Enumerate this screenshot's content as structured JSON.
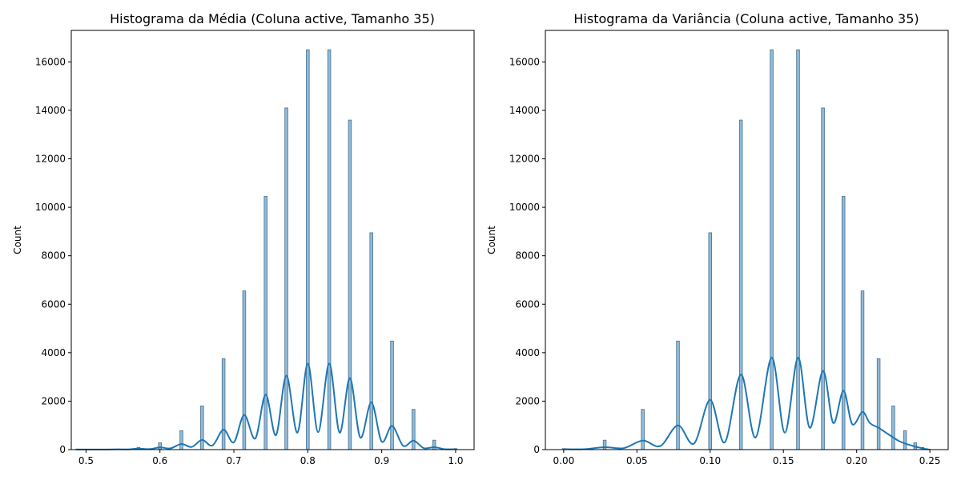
{
  "chart_data": [
    {
      "type": "bar",
      "title": "Histograma da Média (Coluna active, Tamanho 35)",
      "xlabel": "",
      "ylabel": "Count",
      "xlim": [
        0.48,
        1.025
      ],
      "ylim": [
        0,
        17300
      ],
      "xticks": [
        0.5,
        0.6,
        0.7,
        0.8,
        0.9,
        1.0
      ],
      "xtick_labels": [
        "0.5",
        "0.6",
        "0.7",
        "0.8",
        "0.9",
        "1.0"
      ],
      "yticks": [
        0,
        2000,
        4000,
        6000,
        8000,
        10000,
        12000,
        14000,
        16000
      ],
      "ytick_labels": [
        "0",
        "2000",
        "4000",
        "6000",
        "8000",
        "10000",
        "12000",
        "14000",
        "16000"
      ],
      "bar_width": 0.004,
      "x": [
        0.486,
        0.514,
        0.543,
        0.571,
        0.6,
        0.629,
        0.657,
        0.686,
        0.714,
        0.743,
        0.771,
        0.8,
        0.829,
        0.857,
        0.886,
        0.914,
        0.943,
        0.971,
        1.0
      ],
      "values": [
        2,
        5,
        20,
        90,
        280,
        780,
        1800,
        3750,
        6550,
        10450,
        14100,
        16500,
        16500,
        13600,
        8950,
        4480,
        1660,
        390,
        40
      ],
      "kde": {
        "x": [
          0.486,
          0.5,
          0.514,
          0.529,
          0.543,
          0.557,
          0.571,
          0.586,
          0.6,
          0.614,
          0.629,
          0.643,
          0.657,
          0.671,
          0.686,
          0.7,
          0.714,
          0.729,
          0.743,
          0.757,
          0.771,
          0.786,
          0.8,
          0.814,
          0.829,
          0.843,
          0.857,
          0.871,
          0.886,
          0.9,
          0.914,
          0.929,
          0.943,
          0.957,
          0.971,
          0.986,
          1.0
        ],
        "y": [
          5,
          3,
          6,
          4,
          12,
          8,
          40,
          20,
          90,
          50,
          230,
          110,
          400,
          170,
          820,
          300,
          1430,
          460,
          2270,
          600,
          3050,
          700,
          3550,
          720,
          3550,
          700,
          2950,
          500,
          1950,
          330,
          980,
          160,
          370,
          60,
          100,
          15,
          20
        ]
      },
      "color": "#1f77b4"
    },
    {
      "type": "bar",
      "title": "Histograma da Variância (Coluna active, Tamanho 35)",
      "xlabel": "",
      "ylabel": "Count",
      "xlim": [
        -0.0125,
        0.2625
      ],
      "ylim": [
        0,
        17300
      ],
      "xticks": [
        0.0,
        0.05,
        0.1,
        0.15,
        0.2,
        0.25
      ],
      "xtick_labels": [
        "0.00",
        "0.05",
        "0.10",
        "0.15",
        "0.20",
        "0.25"
      ],
      "yticks": [
        0,
        2000,
        4000,
        6000,
        8000,
        10000,
        12000,
        14000,
        16000
      ],
      "ytick_labels": [
        "0",
        "2000",
        "4000",
        "6000",
        "8000",
        "10000",
        "12000",
        "14000",
        "16000"
      ],
      "bar_width": 0.002,
      "x": [
        0.0,
        0.028,
        0.054,
        0.078,
        0.1,
        0.121,
        0.142,
        0.16,
        0.177,
        0.191,
        0.204,
        0.215,
        0.225,
        0.233,
        0.24,
        0.245,
        0.249
      ],
      "values": [
        40,
        390,
        1660,
        4480,
        8950,
        13600,
        16500,
        16500,
        14100,
        10450,
        6550,
        3750,
        1800,
        780,
        280,
        90,
        20
      ],
      "kde": {
        "x": [
          0.0,
          0.014,
          0.028,
          0.041,
          0.054,
          0.066,
          0.078,
          0.089,
          0.1,
          0.11,
          0.121,
          0.131,
          0.142,
          0.151,
          0.16,
          0.168,
          0.177,
          0.184,
          0.191,
          0.197,
          0.204,
          0.209,
          0.215,
          0.22,
          0.225,
          0.229,
          0.233,
          0.237,
          0.24,
          0.243,
          0.245,
          0.247,
          0.249
        ],
        "y": [
          20,
          15,
          100,
          60,
          370,
          150,
          1000,
          250,
          2050,
          300,
          3100,
          500,
          3800,
          700,
          3800,
          900,
          3250,
          1100,
          2430,
          1050,
          1550,
          1100,
          900,
          700,
          500,
          350,
          250,
          180,
          120,
          80,
          50,
          25,
          10
        ]
      },
      "color": "#1f77b4"
    }
  ]
}
